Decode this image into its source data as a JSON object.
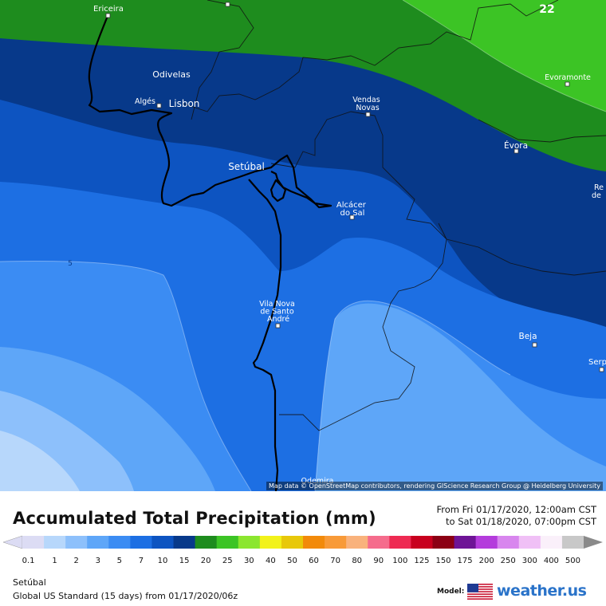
{
  "map": {
    "cities": [
      {
        "name": "Ericeira"
      },
      {
        "name": "Odivelas"
      },
      {
        "name": "Algés"
      },
      {
        "name": "Lisbon"
      },
      {
        "name": "Vendas\nNovas"
      },
      {
        "name": "Evoramonte"
      },
      {
        "name": "Évora"
      },
      {
        "name": "Setúbal"
      },
      {
        "name": "Alcácer\ndo Sal"
      },
      {
        "name": "Vila Nova\nde Santo\nAndré"
      },
      {
        "name": "Beja"
      },
      {
        "name": "Odemira"
      }
    ],
    "partial_labels": [
      "Re",
      "de",
      "Serp",
      "22"
    ],
    "contour_label": "5",
    "attribution": "Map data © OpenStreetMap contributors, rendering GIScience Research Group @ Heidelberg University"
  },
  "legend": {
    "title": "Accumulated Total Precipitation (mm)",
    "from_text": "From Fri 01/17/2020, 12:00am CST",
    "to_text": "to Sat 01/18/2020, 07:00pm CST",
    "scale": [
      {
        "label": "0.1",
        "color": "#dcdcf4"
      },
      {
        "label": "1",
        "color": "#b7d7fb"
      },
      {
        "label": "2",
        "color": "#8dc0fb"
      },
      {
        "label": "3",
        "color": "#5ea6f8"
      },
      {
        "label": "5",
        "color": "#3b8cf3"
      },
      {
        "label": "7",
        "color": "#1d6fe3"
      },
      {
        "label": "10",
        "color": "#0d54c1"
      },
      {
        "label": "15",
        "color": "#07398a"
      },
      {
        "label": "20",
        "color": "#1e8c1e"
      },
      {
        "label": "25",
        "color": "#3cc425"
      },
      {
        "label": "30",
        "color": "#8be62f"
      },
      {
        "label": "40",
        "color": "#f2f21a"
      },
      {
        "label": "50",
        "color": "#e8c80a"
      },
      {
        "label": "60",
        "color": "#f28a0a"
      },
      {
        "label": "70",
        "color": "#f89a38"
      },
      {
        "label": "80",
        "color": "#f9b27c"
      },
      {
        "label": "90",
        "color": "#f56c8c"
      },
      {
        "label": "100",
        "color": "#ee2a52"
      },
      {
        "label": "125",
        "color": "#c8001e"
      },
      {
        "label": "150",
        "color": "#8c0014"
      },
      {
        "label": "175",
        "color": "#6e1496"
      },
      {
        "label": "200",
        "color": "#b43cdc"
      },
      {
        "label": "250",
        "color": "#d886ee"
      },
      {
        "label": "300",
        "color": "#f0c0f6"
      },
      {
        "label": "400",
        "color": "#faf0fa"
      },
      {
        "label": "500",
        "color": "#c8c8c8"
      }
    ],
    "location": "Setúbal",
    "model_text": "Global US Standard (15 days) from 01/17/2020/06z",
    "model_label": "Model:",
    "brand": "weather.us"
  }
}
